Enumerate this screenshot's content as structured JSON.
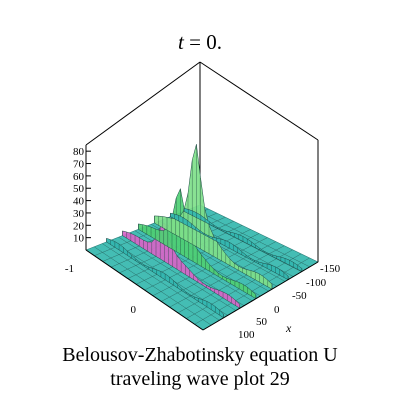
{
  "title": {
    "var": "t",
    "rest": " = 0."
  },
  "caption": {
    "line1": "Belousov-Zhabotinsky equation U",
    "line2": "traveling wave plot 29"
  },
  "chart_data": {
    "type": "surface3d",
    "title": "t = 0.",
    "xlabel": "x",
    "z_ticks": [
      "10",
      "20",
      "30",
      "40",
      "50",
      "60",
      "70",
      "80"
    ],
    "x_ticks": [
      "-150",
      "-100",
      "-50",
      "0",
      "50",
      "100"
    ],
    "y_ticks": [
      "-1",
      "0"
    ],
    "zlim": [
      0,
      85
    ],
    "peaks": [
      {
        "x": -20,
        "y": -0.6,
        "z": 82
      },
      {
        "x": 40,
        "y": 0.0,
        "z": 52
      },
      {
        "x": 65,
        "y": 0.25,
        "z": 30
      }
    ],
    "box": true,
    "colors": {
      "low": "#32b6b0",
      "mid": "#7fe08a",
      "high": "#e8e86a",
      "magenta": "#d865c8",
      "green": "#4fcf74"
    }
  }
}
